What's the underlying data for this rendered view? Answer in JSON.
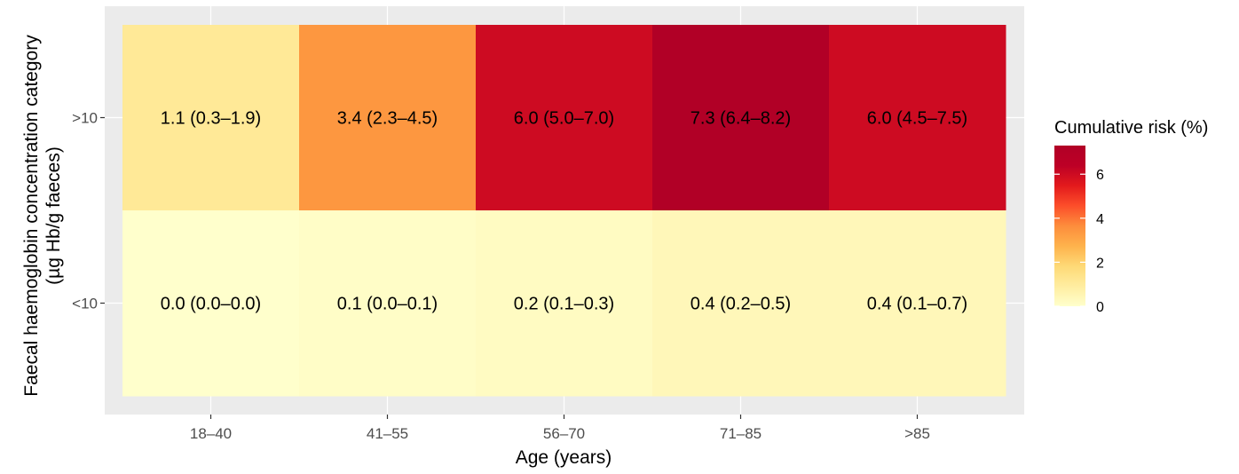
{
  "chart_data": {
    "type": "heatmap",
    "x_categories": [
      "18–40",
      "41–55",
      "56–70",
      "71–85",
      ">85"
    ],
    "y_categories": [
      ">10",
      "<10"
    ],
    "xlabel": "Age (years)",
    "ylabel_line1": "Faecal haemoglobin concentration category",
    "ylabel_line2": "(µg Hb/g faeces)",
    "cells": [
      {
        "row": ">10",
        "col": "18–40",
        "value": 1.1,
        "label": "1.1 (0.3–1.9)"
      },
      {
        "row": ">10",
        "col": "41–55",
        "value": 3.4,
        "label": "3.4 (2.3–4.5)"
      },
      {
        "row": ">10",
        "col": "56–70",
        "value": 6.0,
        "label": "6.0 (5.0–7.0)"
      },
      {
        "row": ">10",
        "col": "71–85",
        "value": 7.3,
        "label": "7.3 (6.4–8.2)"
      },
      {
        "row": ">10",
        "col": ">85",
        "value": 6.0,
        "label": "6.0 (4.5–7.5)"
      },
      {
        "row": "<10",
        "col": "18–40",
        "value": 0.0,
        "label": "0.0 (0.0–0.0)"
      },
      {
        "row": "<10",
        "col": "41–55",
        "value": 0.1,
        "label": "0.1 (0.0–0.1)"
      },
      {
        "row": "<10",
        "col": "56–70",
        "value": 0.2,
        "label": "0.2 (0.1–0.3)"
      },
      {
        "row": "<10",
        "col": "71–85",
        "value": 0.4,
        "label": "0.4 (0.2–0.5)"
      },
      {
        "row": "<10",
        "col": ">85",
        "value": 0.4,
        "label": "0.4 (0.1–0.7)"
      }
    ],
    "legend": {
      "title": "Cumulative risk (%)",
      "ticks": [
        0,
        2,
        4,
        6
      ],
      "range": [
        0,
        7.3
      ],
      "colors": [
        "#ffffcc",
        "#ffeda0",
        "#fed976",
        "#feb24c",
        "#fd8d3c",
        "#fc4e2a",
        "#e31a1c",
        "#bd0026",
        "#b10026"
      ]
    },
    "colors": {
      "panel_background": "#ebebeb",
      "grid": "#ffffff"
    }
  }
}
